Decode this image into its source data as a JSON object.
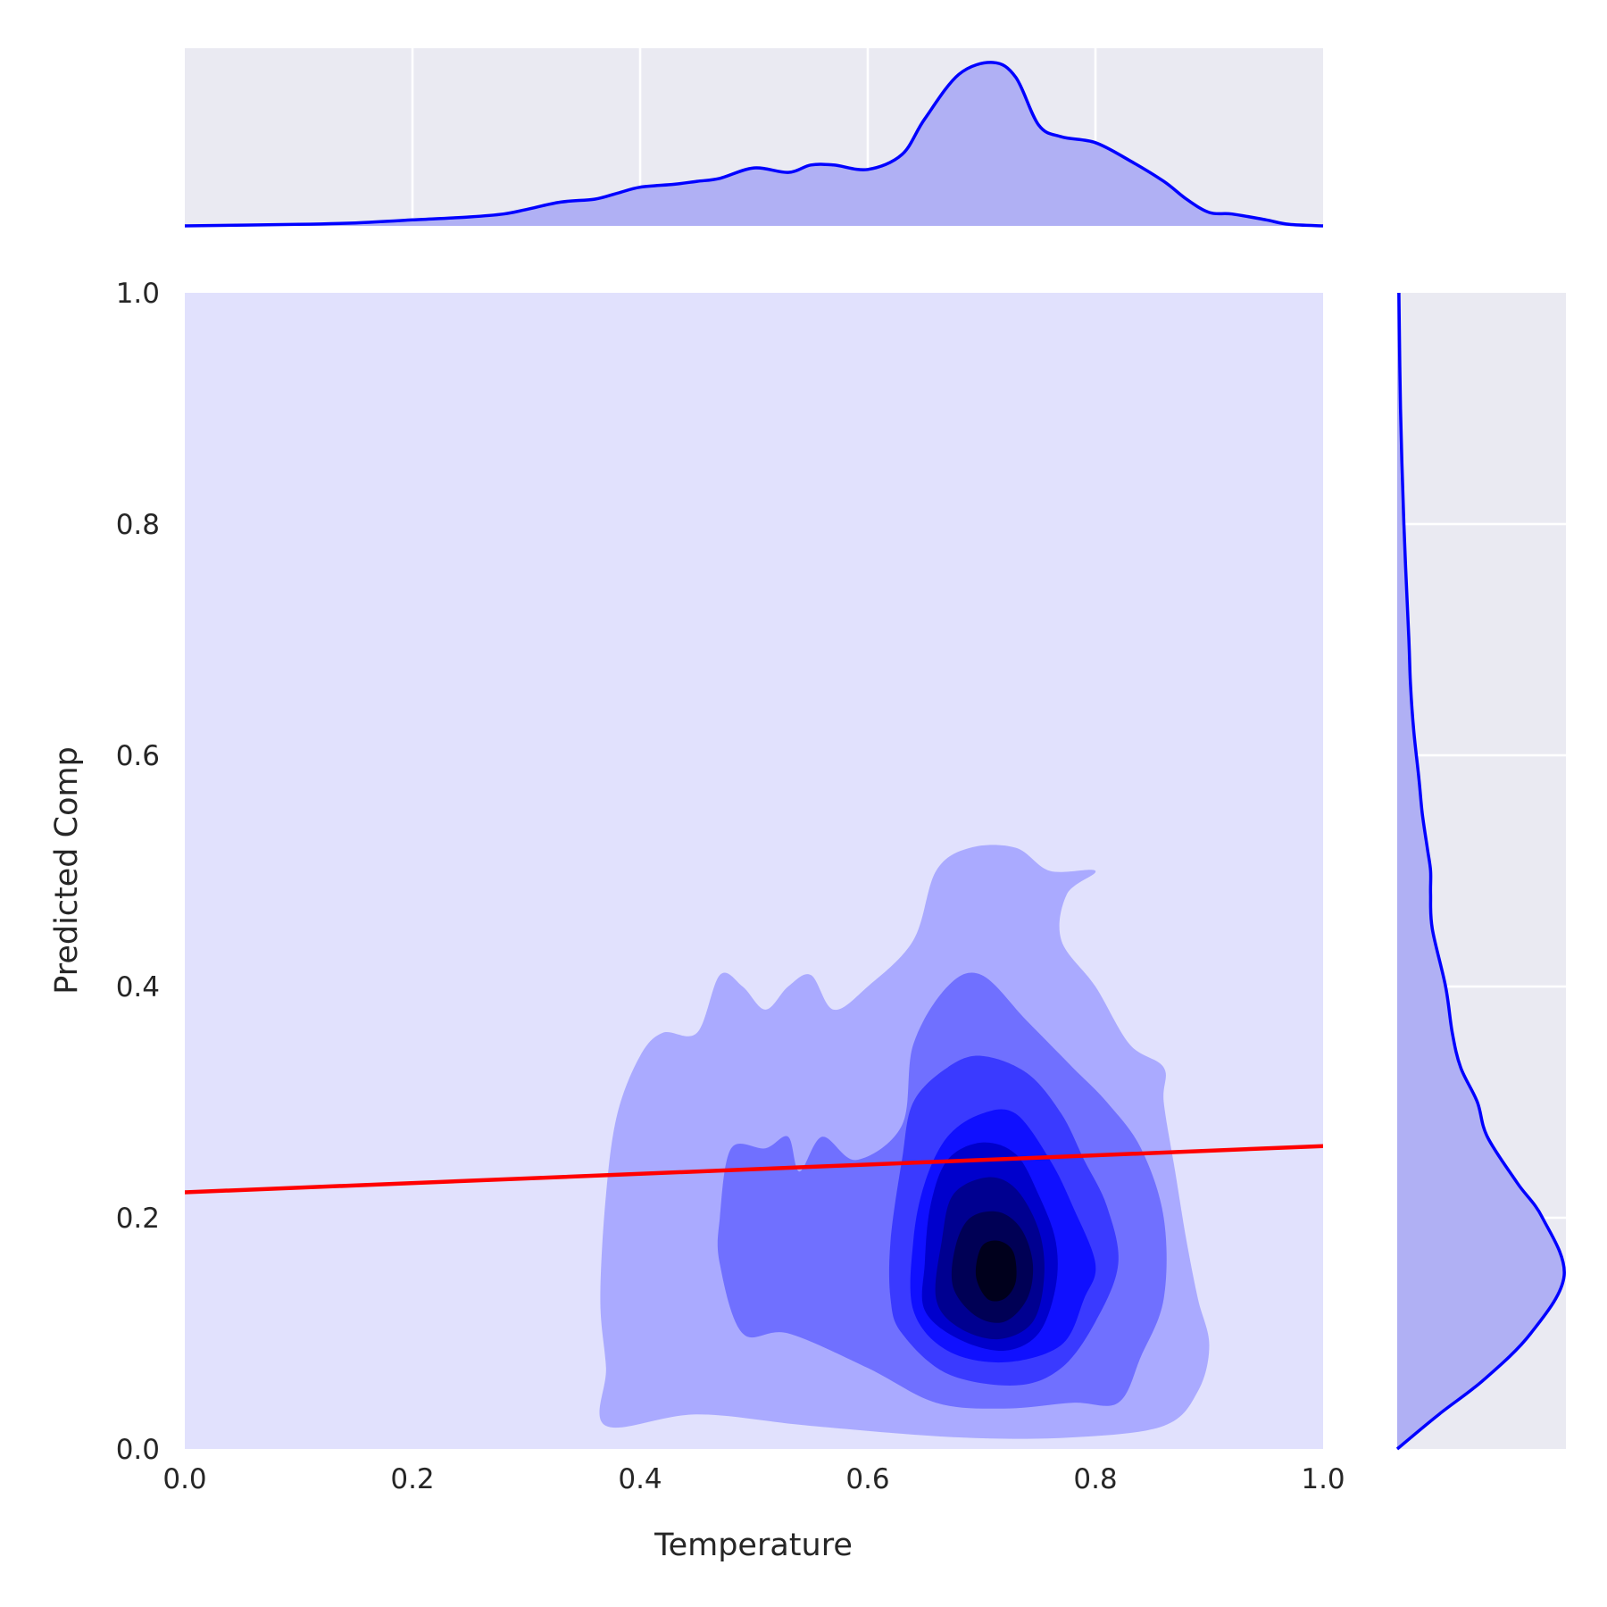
{
  "chart_data": {
    "type": "kde_joint",
    "xlabel": "Temperature",
    "ylabel": "Predicted Comp",
    "xlim": [
      0.0,
      1.0
    ],
    "ylim": [
      0.0,
      1.0
    ],
    "x_ticks": [
      "0.0",
      "0.2",
      "0.4",
      "0.6",
      "0.8",
      "1.0"
    ],
    "y_ticks": [
      "0.0",
      "0.2",
      "0.4",
      "0.6",
      "0.8",
      "1.0"
    ],
    "grid": true,
    "colors": {
      "kde_background": "#e1e1fd",
      "marginal_background": "#eaeaf2",
      "marginal_fill": "#b0b0f4",
      "line": "#0000ff",
      "regression": "#ff0000",
      "levels": [
        "#aaaaff",
        "#7070ff",
        "#3a3aff",
        "#1010ff",
        "#0000cc",
        "#000090",
        "#000055",
        "#00001c"
      ]
    },
    "regression_line": {
      "x": [
        0.0,
        1.0
      ],
      "y": [
        0.222,
        0.262
      ]
    },
    "joint_kde": {
      "peak": {
        "x": 0.71,
        "y": 0.155
      },
      "levels": [
        {
          "level": 1,
          "points": [
            [
              0.37,
              0.02
            ],
            [
              0.45,
              0.03
            ],
            [
              0.55,
              0.02
            ],
            [
              0.68,
              0.01
            ],
            [
              0.78,
              0.01
            ],
            [
              0.86,
              0.02
            ],
            [
              0.89,
              0.05
            ],
            [
              0.9,
              0.09
            ],
            [
              0.89,
              0.13
            ],
            [
              0.88,
              0.18
            ],
            [
              0.87,
              0.24
            ],
            [
              0.86,
              0.3
            ],
            [
              0.86,
              0.33
            ],
            [
              0.83,
              0.35
            ],
            [
              0.8,
              0.4
            ],
            [
              0.77,
              0.44
            ],
            [
              0.775,
              0.48
            ],
            [
              0.8,
              0.5
            ],
            [
              0.76,
              0.5
            ],
            [
              0.73,
              0.52
            ],
            [
              0.69,
              0.52
            ],
            [
              0.66,
              0.5
            ],
            [
              0.64,
              0.44
            ],
            [
              0.6,
              0.4
            ],
            [
              0.57,
              0.38
            ],
            [
              0.55,
              0.41
            ],
            [
              0.53,
              0.4
            ],
            [
              0.51,
              0.38
            ],
            [
              0.49,
              0.4
            ],
            [
              0.47,
              0.41
            ],
            [
              0.45,
              0.36
            ],
            [
              0.42,
              0.36
            ],
            [
              0.4,
              0.34
            ],
            [
              0.38,
              0.29
            ],
            [
              0.37,
              0.22
            ],
            [
              0.365,
              0.13
            ],
            [
              0.37,
              0.07
            ]
          ]
        },
        {
          "level": 2,
          "points": [
            [
              0.49,
              0.1
            ],
            [
              0.53,
              0.1
            ],
            [
              0.6,
              0.07
            ],
            [
              0.66,
              0.04
            ],
            [
              0.72,
              0.035
            ],
            [
              0.78,
              0.04
            ],
            [
              0.82,
              0.04
            ],
            [
              0.84,
              0.08
            ],
            [
              0.86,
              0.13
            ],
            [
              0.86,
              0.2
            ],
            [
              0.84,
              0.26
            ],
            [
              0.81,
              0.3
            ],
            [
              0.78,
              0.33
            ],
            [
              0.74,
              0.37
            ],
            [
              0.7,
              0.41
            ],
            [
              0.67,
              0.4
            ],
            [
              0.64,
              0.35
            ],
            [
              0.63,
              0.28
            ],
            [
              0.59,
              0.25
            ],
            [
              0.56,
              0.27
            ],
            [
              0.54,
              0.24
            ],
            [
              0.53,
              0.27
            ],
            [
              0.51,
              0.26
            ],
            [
              0.48,
              0.26
            ],
            [
              0.47,
              0.2
            ],
            [
              0.47,
              0.16
            ]
          ]
        },
        {
          "level": 3,
          "points": [
            [
              0.63,
              0.1
            ],
            [
              0.67,
              0.065
            ],
            [
              0.73,
              0.055
            ],
            [
              0.77,
              0.07
            ],
            [
              0.8,
              0.11
            ],
            [
              0.82,
              0.16
            ],
            [
              0.81,
              0.21
            ],
            [
              0.79,
              0.25
            ],
            [
              0.77,
              0.29
            ],
            [
              0.74,
              0.325
            ],
            [
              0.7,
              0.34
            ],
            [
              0.67,
              0.33
            ],
            [
              0.64,
              0.3
            ],
            [
              0.63,
              0.25
            ],
            [
              0.62,
              0.18
            ],
            [
              0.62,
              0.13
            ]
          ]
        },
        {
          "level": 4,
          "points": [
            [
              0.64,
              0.12
            ],
            [
              0.67,
              0.085
            ],
            [
              0.72,
              0.075
            ],
            [
              0.77,
              0.09
            ],
            [
              0.79,
              0.13
            ],
            [
              0.8,
              0.16
            ],
            [
              0.78,
              0.21
            ],
            [
              0.76,
              0.25
            ],
            [
              0.73,
              0.29
            ],
            [
              0.7,
              0.29
            ],
            [
              0.67,
              0.27
            ],
            [
              0.65,
              0.23
            ],
            [
              0.64,
              0.18
            ]
          ]
        },
        {
          "level": 5,
          "points": [
            [
              0.65,
              0.12
            ],
            [
              0.68,
              0.095
            ],
            [
              0.72,
              0.085
            ],
            [
              0.75,
              0.1
            ],
            [
              0.765,
              0.14
            ],
            [
              0.765,
              0.18
            ],
            [
              0.75,
              0.22
            ],
            [
              0.73,
              0.255
            ],
            [
              0.7,
              0.265
            ],
            [
              0.67,
              0.25
            ],
            [
              0.655,
              0.21
            ],
            [
              0.65,
              0.16
            ]
          ]
        },
        {
          "level": 6,
          "points": [
            [
              0.66,
              0.13
            ],
            [
              0.68,
              0.105
            ],
            [
              0.715,
              0.095
            ],
            [
              0.745,
              0.11
            ],
            [
              0.755,
              0.15
            ],
            [
              0.75,
              0.19
            ],
            [
              0.73,
              0.225
            ],
            [
              0.705,
              0.235
            ],
            [
              0.675,
              0.22
            ],
            [
              0.665,
              0.18
            ]
          ]
        },
        {
          "level": 7,
          "points": [
            [
              0.675,
              0.14
            ],
            [
              0.695,
              0.115
            ],
            [
              0.72,
              0.11
            ],
            [
              0.74,
              0.13
            ],
            [
              0.745,
              0.16
            ],
            [
              0.735,
              0.19
            ],
            [
              0.715,
              0.205
            ],
            [
              0.69,
              0.2
            ],
            [
              0.677,
              0.175
            ]
          ]
        },
        {
          "level": 8,
          "points": [
            [
              0.695,
              0.15
            ],
            [
              0.705,
              0.13
            ],
            [
              0.72,
              0.13
            ],
            [
              0.73,
              0.145
            ],
            [
              0.728,
              0.17
            ],
            [
              0.715,
              0.18
            ],
            [
              0.7,
              0.175
            ]
          ]
        }
      ]
    },
    "marginal_x_kde": {
      "x": [
        0.0,
        0.1,
        0.15,
        0.2,
        0.25,
        0.28,
        0.3,
        0.33,
        0.36,
        0.38,
        0.4,
        0.43,
        0.45,
        0.47,
        0.5,
        0.53,
        0.55,
        0.57,
        0.6,
        0.63,
        0.65,
        0.68,
        0.71,
        0.73,
        0.75,
        0.77,
        0.8,
        0.83,
        0.86,
        0.88,
        0.9,
        0.92,
        0.95,
        0.97,
        1.0
      ],
      "density": [
        0.0,
        0.01,
        0.02,
        0.04,
        0.06,
        0.08,
        0.11,
        0.16,
        0.18,
        0.22,
        0.26,
        0.28,
        0.3,
        0.32,
        0.39,
        0.36,
        0.41,
        0.41,
        0.38,
        0.48,
        0.72,
        1.02,
        1.1,
        1.0,
        0.68,
        0.6,
        0.56,
        0.44,
        0.3,
        0.18,
        0.09,
        0.08,
        0.04,
        0.01,
        0.0
      ]
    },
    "marginal_y_kde": {
      "y": [
        0.0,
        0.03,
        0.06,
        0.1,
        0.15,
        0.2,
        0.23,
        0.27,
        0.3,
        0.33,
        0.36,
        0.4,
        0.45,
        0.48,
        0.5,
        0.52,
        0.55,
        0.58,
        0.62,
        0.66,
        0.7,
        0.8,
        0.9,
        1.0
      ],
      "density": [
        0.0,
        0.25,
        0.52,
        0.8,
        1.0,
        0.87,
        0.72,
        0.54,
        0.48,
        0.38,
        0.33,
        0.29,
        0.21,
        0.2,
        0.2,
        0.18,
        0.15,
        0.13,
        0.1,
        0.08,
        0.07,
        0.04,
        0.02,
        0.01
      ]
    }
  }
}
